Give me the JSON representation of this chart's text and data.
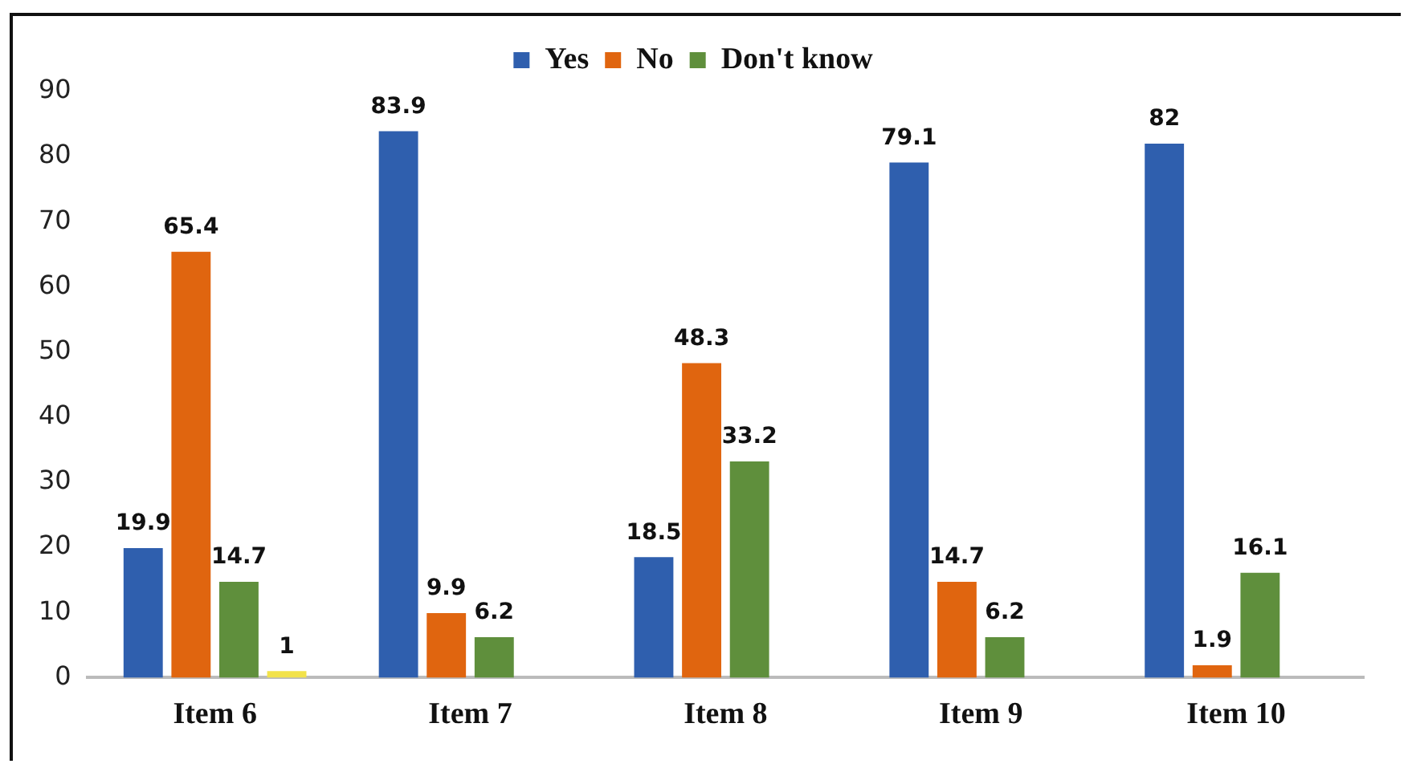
{
  "chart_data": {
    "type": "bar",
    "categories": [
      "Item 6",
      "Item 7",
      "Item 8",
      "Item 9",
      "Item 10"
    ],
    "series": [
      {
        "name": "Yes",
        "color": "#2f5fae",
        "values": [
          19.9,
          83.9,
          18.5,
          79.1,
          82
        ]
      },
      {
        "name": "No",
        "color": "#e0650f",
        "values": [
          65.4,
          9.9,
          48.3,
          14.7,
          1.9
        ]
      },
      {
        "name": "Don't know",
        "color": "#5f8f3c",
        "values": [
          14.7,
          6.2,
          33.2,
          6.2,
          16.1
        ]
      },
      {
        "color": "#f2e24a",
        "values": [
          1,
          null,
          null,
          null,
          null
        ]
      }
    ],
    "ylim": [
      0,
      90
    ],
    "yticks": [
      0,
      10,
      20,
      30,
      40,
      50,
      60,
      70,
      80,
      90
    ],
    "grid": false,
    "legend": "top",
    "data_labels": true
  }
}
